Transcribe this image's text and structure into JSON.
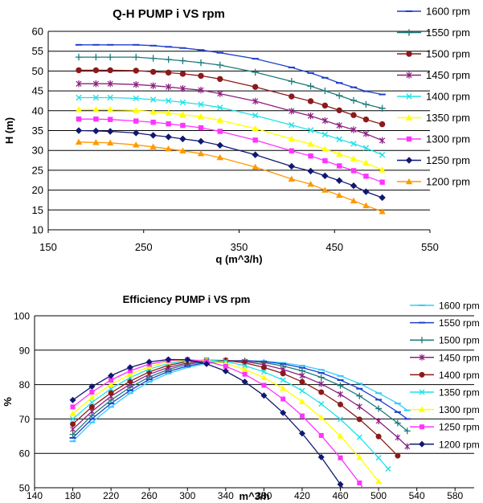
{
  "chart_data": [
    {
      "type": "line",
      "title": "Q-H PUMP i  VS rpm",
      "xlabel": "q (m^3/h)",
      "ylabel": "H (m)",
      "xlim": [
        150,
        550
      ],
      "ylim": [
        10,
        60
      ],
      "xticks": [
        "150",
        "250",
        "350",
        "450",
        "550"
      ],
      "yticks": [
        "10",
        "15",
        "20",
        "25",
        "30",
        "35",
        "40",
        "45",
        "50",
        "55",
        "60"
      ],
      "grid": "horizontal",
      "legend": "right",
      "x": [
        182,
        200,
        215,
        242,
        260,
        276,
        291,
        310,
        330,
        367,
        405,
        425,
        440,
        455,
        470,
        483,
        500
      ],
      "series": [
        {
          "name": "1600 rpm",
          "color": "#1f3fcc",
          "marker": "dash",
          "values": [
            56.6,
            56.6,
            56.6,
            56.6,
            56.4,
            56.1,
            55.8,
            55.3,
            54.6,
            53.1,
            50.9,
            49.5,
            48.3,
            47.0,
            45.9,
            44.9,
            44.1
          ]
        },
        {
          "name": "1550 rpm",
          "color": "#1d7a7a",
          "marker": "plus",
          "values": [
            53.5,
            53.5,
            53.5,
            53.5,
            53.2,
            52.9,
            52.6,
            52.1,
            51.5,
            49.7,
            47.4,
            46.2,
            45.0,
            43.8,
            42.6,
            41.6,
            40.6
          ]
        },
        {
          "name": "1500 rpm",
          "color": "#8b1a1a",
          "marker": "circle",
          "values": [
            50.2,
            50.2,
            50.2,
            50.1,
            49.8,
            49.6,
            49.3,
            48.8,
            48.0,
            46.0,
            43.6,
            42.4,
            41.3,
            40.1,
            38.9,
            37.8,
            36.6
          ]
        },
        {
          "name": "1450 rpm",
          "color": "#8b2080",
          "marker": "star",
          "values": [
            46.8,
            46.8,
            46.8,
            46.6,
            46.3,
            46.0,
            45.6,
            45.2,
            44.3,
            42.4,
            39.9,
            38.7,
            37.5,
            36.3,
            35.2,
            34.2,
            32.5
          ]
        },
        {
          "name": "1400 rpm",
          "color": "#20e0e8",
          "marker": "x",
          "values": [
            43.3,
            43.3,
            43.3,
            43.1,
            42.8,
            42.5,
            42.1,
            41.6,
            40.8,
            38.8,
            36.4,
            35.1,
            34.0,
            32.8,
            31.7,
            30.6,
            28.9
          ]
        },
        {
          "name": "1350 rpm",
          "color": "#ffff00",
          "marker": "triangle",
          "values": [
            40.3,
            40.3,
            40.3,
            40.1,
            39.7,
            39.4,
            39.0,
            38.5,
            37.6,
            35.5,
            32.9,
            31.6,
            30.3,
            29.1,
            27.9,
            26.8,
            25.1
          ]
        },
        {
          "name": "1300 rpm",
          "color": "#ff33ff",
          "marker": "square",
          "values": [
            37.9,
            37.9,
            37.8,
            37.4,
            37.1,
            36.7,
            36.3,
            35.7,
            34.8,
            32.6,
            29.9,
            28.6,
            27.4,
            26.1,
            24.9,
            23.5,
            22.0
          ]
        },
        {
          "name": "1250 rpm",
          "color": "#101870",
          "marker": "diamond",
          "values": [
            35.0,
            34.9,
            34.8,
            34.4,
            33.8,
            33.4,
            32.9,
            32.3,
            31.3,
            28.9,
            26.0,
            24.8,
            23.6,
            22.4,
            21.1,
            19.6,
            18.1
          ]
        },
        {
          "name": "1200 rpm",
          "color": "#ff9900",
          "marker": "triangle",
          "values": [
            32.1,
            32.0,
            31.9,
            31.4,
            30.9,
            30.4,
            29.9,
            29.2,
            28.2,
            25.8,
            22.8,
            21.5,
            20.0,
            18.7,
            17.3,
            16.1,
            14.6
          ]
        }
      ]
    },
    {
      "type": "line",
      "title": "Efficiency PUMP i VS rpm",
      "xlabel": "m^3/h",
      "ylabel": "%",
      "xlim": [
        140,
        600
      ],
      "ylim": [
        50,
        100
      ],
      "xticks": [
        "140",
        "180",
        "220",
        "260",
        "300",
        "340",
        "380",
        "420",
        "460",
        "500",
        "540",
        "580"
      ],
      "yticks": [
        "50",
        "60",
        "70",
        "80",
        "90",
        "100"
      ],
      "grid": "horizontal",
      "legend": "right",
      "series": [
        {
          "name": "1600 rpm",
          "color": "#33ccff",
          "marker": "dash",
          "x": [
            180,
            200,
            220,
            240,
            260,
            280,
            300,
            320,
            340,
            360,
            380,
            400,
            420,
            440,
            460,
            480,
            500,
            520,
            530
          ],
          "values": [
            63.5,
            69,
            73.5,
            77.5,
            80.8,
            83.2,
            85.0,
            86.1,
            86.7,
            86.9,
            86.8,
            86.3,
            85.5,
            84.3,
            82.5,
            80.3,
            77.5,
            74.5,
            72.5
          ]
        },
        {
          "name": "1550 rpm",
          "color": "#1f3fcc",
          "marker": "dash",
          "x": [
            180,
            200,
            220,
            240,
            260,
            280,
            300,
            320,
            340,
            360,
            380,
            400,
            420,
            440,
            460,
            480,
            500,
            520,
            530
          ],
          "values": [
            64.5,
            70,
            74.5,
            78.3,
            81.5,
            83.8,
            85.4,
            86.4,
            86.9,
            87.0,
            86.7,
            86.0,
            84.9,
            83.4,
            81.3,
            78.8,
            75.6,
            72.0,
            70.0
          ]
        },
        {
          "name": "1500 rpm",
          "color": "#1d7a7a",
          "marker": "plus",
          "x": [
            180,
            200,
            220,
            240,
            260,
            280,
            300,
            320,
            340,
            360,
            380,
            400,
            420,
            440,
            460,
            480,
            500,
            520,
            530
          ],
          "values": [
            65.5,
            71,
            75.5,
            79.2,
            82.2,
            84.4,
            85.9,
            86.7,
            87.0,
            86.9,
            86.4,
            85.4,
            84.0,
            82.1,
            79.7,
            76.7,
            73.0,
            68.8,
            66.5
          ]
        },
        {
          "name": "1450 rpm",
          "color": "#8b2080",
          "marker": "star",
          "x": [
            180,
            200,
            220,
            240,
            260,
            280,
            300,
            320,
            340,
            360,
            380,
            400,
            420,
            440,
            460,
            480,
            500,
            520,
            530
          ],
          "values": [
            67,
            72.2,
            76.6,
            80.1,
            83.0,
            85.0,
            86.3,
            86.9,
            87.0,
            86.7,
            85.8,
            84.4,
            82.6,
            80.2,
            77.2,
            73.6,
            69.4,
            64.6,
            62
          ]
        },
        {
          "name": "1400 rpm",
          "color": "#8b1a1a",
          "marker": "circle",
          "x": [
            180,
            200,
            220,
            240,
            260,
            280,
            300,
            320,
            340,
            360,
            380,
            400,
            420,
            440,
            460,
            480,
            500,
            520
          ],
          "values": [
            68.5,
            73.5,
            77.6,
            81.0,
            83.7,
            85.6,
            86.7,
            87.1,
            87.0,
            86.3,
            85.0,
            83.2,
            80.8,
            77.8,
            74.2,
            69.9,
            64.9,
            59.3
          ]
        },
        {
          "name": "1350 rpm",
          "color": "#20e0e8",
          "marker": "x",
          "x": [
            180,
            200,
            220,
            240,
            260,
            280,
            300,
            320,
            340,
            360,
            380,
            400,
            420,
            440,
            460,
            480,
            500,
            510
          ],
          "values": [
            70,
            74.8,
            78.8,
            82.0,
            84.5,
            86.1,
            87.0,
            87.2,
            86.7,
            85.5,
            83.7,
            81.3,
            78.2,
            74.4,
            69.9,
            64.7,
            58.7,
            55.5
          ]
        },
        {
          "name": "1300 rpm",
          "color": "#ffff00",
          "marker": "triangle",
          "x": [
            180,
            200,
            220,
            240,
            260,
            280,
            300,
            320,
            340,
            360,
            380,
            400,
            420,
            440,
            460,
            480,
            500
          ],
          "values": [
            71.5,
            76.2,
            80.0,
            83.0,
            85.2,
            86.6,
            87.2,
            87.0,
            86.1,
            84.4,
            82.0,
            78.9,
            75.0,
            70.4,
            65.0,
            58.8,
            51.8
          ]
        },
        {
          "name": "1250 rpm",
          "color": "#ff33ff",
          "marker": "square",
          "x": [
            180,
            200,
            220,
            240,
            260,
            280,
            300,
            320,
            340,
            360,
            380,
            400,
            420,
            440,
            460,
            480,
            490
          ],
          "values": [
            73.5,
            77.8,
            81.3,
            84.0,
            85.9,
            87.0,
            87.3,
            86.7,
            85.3,
            83.0,
            79.8,
            75.8,
            70.9,
            65.2,
            58.7,
            51.4,
            47.5
          ]
        },
        {
          "name": "1200 rpm",
          "color": "#101870",
          "marker": "diamond",
          "x": [
            180,
            200,
            220,
            240,
            260,
            280,
            300,
            320,
            340,
            360,
            380,
            400,
            420,
            440,
            460,
            470
          ],
          "values": [
            75.5,
            79.4,
            82.6,
            85.0,
            86.6,
            87.3,
            87.2,
            86.0,
            83.9,
            80.8,
            76.8,
            71.8,
            65.8,
            58.9,
            51.0,
            47.0
          ]
        }
      ]
    }
  ]
}
